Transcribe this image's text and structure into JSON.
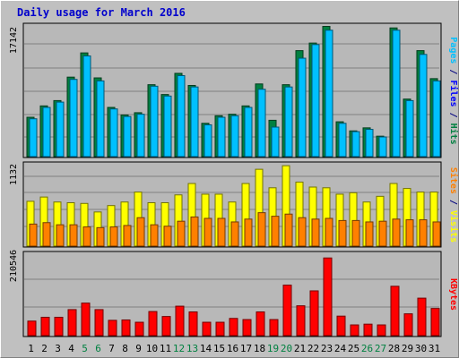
{
  "chart_data": {
    "type": "bar",
    "title": "Daily usage for March 2016",
    "days": [
      "1",
      "2",
      "3",
      "4",
      "5",
      "6",
      "7",
      "8",
      "9",
      "10",
      "11",
      "12",
      "13",
      "14",
      "15",
      "16",
      "17",
      "18",
      "19",
      "20",
      "21",
      "22",
      "23",
      "24",
      "25",
      "26",
      "27",
      "28",
      "29",
      "30",
      "31"
    ],
    "weekend_days": [
      "5",
      "6",
      "12",
      "13",
      "19",
      "20",
      "26",
      "27"
    ],
    "panels": [
      {
        "ylabel_parts": [
          {
            "text": "Pages",
            "color": "#00c0ff"
          },
          {
            "text": " / ",
            "color": "#000080"
          },
          {
            "text": "Files",
            "color": "#0000ff"
          },
          {
            "text": " / ",
            "color": "#000080"
          },
          {
            "text": "Hits",
            "color": "#008040"
          }
        ],
        "max_label": "17142",
        "ymax": 17142,
        "series": [
          {
            "name": "Hits",
            "color": "#008040",
            "values": [
              5200,
              6700,
              7400,
              10500,
              13700,
              10400,
              6500,
              5500,
              5800,
              9500,
              8200,
              11000,
              9400,
              4400,
              5400,
              5600,
              6700,
              9600,
              4800,
              9500,
              14000,
              15000,
              17200,
              4600,
              3400,
              3800,
              2700,
              17000,
              7600,
              14000,
              10300
            ]
          },
          {
            "name": "Files",
            "color": "#00c0ff",
            "values": [
              5000,
              6500,
              7200,
              10200,
              13300,
              10000,
              6300,
              5300,
              5600,
              9300,
              8000,
              10700,
              9200,
              4200,
              5200,
              5400,
              6500,
              8900,
              3900,
              9200,
              13000,
              14800,
              16700,
              4400,
              3300,
              3600,
              2600,
              16700,
              7400,
              13500,
              10000
            ]
          }
        ]
      },
      {
        "ylabel_parts": [
          {
            "text": "Sites",
            "color": "#ff8000"
          },
          {
            "text": " / ",
            "color": "#000080"
          },
          {
            "text": "Visits",
            "color": "#ffff00"
          }
        ],
        "max_label": "1132",
        "ymax": 1132,
        "series": [
          {
            "name": "Visits",
            "color": "#ffff00",
            "values": [
              630,
              690,
              620,
              610,
              600,
              480,
              570,
              620,
              760,
              610,
              610,
              720,
              880,
              730,
              730,
              620,
              880,
              1080,
              820,
              1130,
              900,
              830,
              820,
              730,
              750,
              620,
              700,
              880,
              810,
              760,
              760
            ]
          },
          {
            "name": "Sites",
            "color": "#ff8000",
            "values": [
              310,
              330,
              300,
              300,
              270,
              260,
              270,
              290,
              400,
              300,
              280,
              350,
              410,
              390,
              390,
              340,
              380,
              470,
              420,
              450,
              400,
              380,
              390,
              360,
              360,
              340,
              350,
              380,
              370,
              370,
              340
            ]
          }
        ]
      },
      {
        "ylabel_parts": [
          {
            "text": "KBytes",
            "color": "#ff0000"
          }
        ],
        "max_label": "210546",
        "ymax": 210546,
        "series": [
          {
            "name": "KBytes",
            "color": "#ff0000",
            "values": [
              38000,
              48000,
              48000,
              68000,
              85000,
              68000,
              40000,
              41000,
              35000,
              63000,
              50000,
              77000,
              62000,
              35000,
              35000,
              45000,
              42000,
              62000,
              42000,
              132000,
              78000,
              117000,
              203000,
              51000,
              28000,
              30000,
              28000,
              129000,
              57000,
              98000,
              71000
            ]
          }
        ]
      }
    ]
  }
}
